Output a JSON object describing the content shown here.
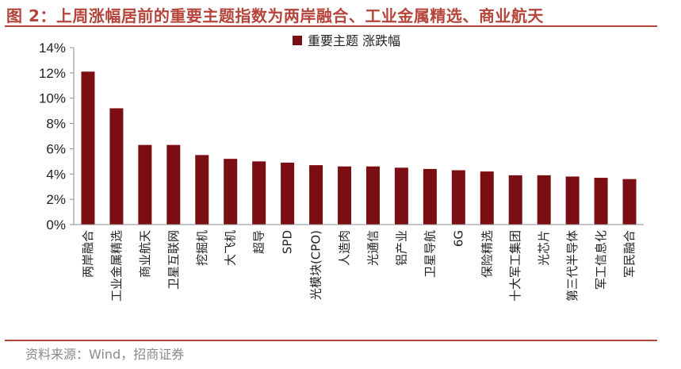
{
  "header": {
    "title": "图 2：上周涨幅居前的重要主题指数为两岸融合、工业金属精选、商业航天"
  },
  "footer": {
    "source": "资料来源：Wind，招商证券"
  },
  "colors": {
    "bar": "#7B0E12",
    "title": "#B5443A",
    "axis": "#8c8c8c"
  },
  "chart_data": {
    "type": "bar",
    "title": "",
    "legend": {
      "label": "重要主题 涨跌幅",
      "position": "top-center"
    },
    "ylim": [
      0,
      14
    ],
    "yticks": [
      "0%",
      "2%",
      "4%",
      "6%",
      "8%",
      "10%",
      "12%",
      "14%"
    ],
    "grid": false,
    "categories": [
      "两岸融合",
      "工业金属精选",
      "商业航天",
      "卫星互联网",
      "挖掘机",
      "大飞机",
      "超导",
      "SPD",
      "光模块(CPO)",
      "人造肉",
      "光通信",
      "铝产业",
      "卫星导航",
      "6G",
      "保险精选",
      "十大军工集团",
      "光芯片",
      "第三代半导体",
      "军工信息化",
      "军民融合"
    ],
    "values": [
      12.1,
      9.2,
      6.3,
      6.3,
      5.5,
      5.2,
      5.0,
      4.9,
      4.7,
      4.6,
      4.6,
      4.5,
      4.4,
      4.3,
      4.2,
      3.9,
      3.9,
      3.8,
      3.7,
      3.6
    ]
  }
}
